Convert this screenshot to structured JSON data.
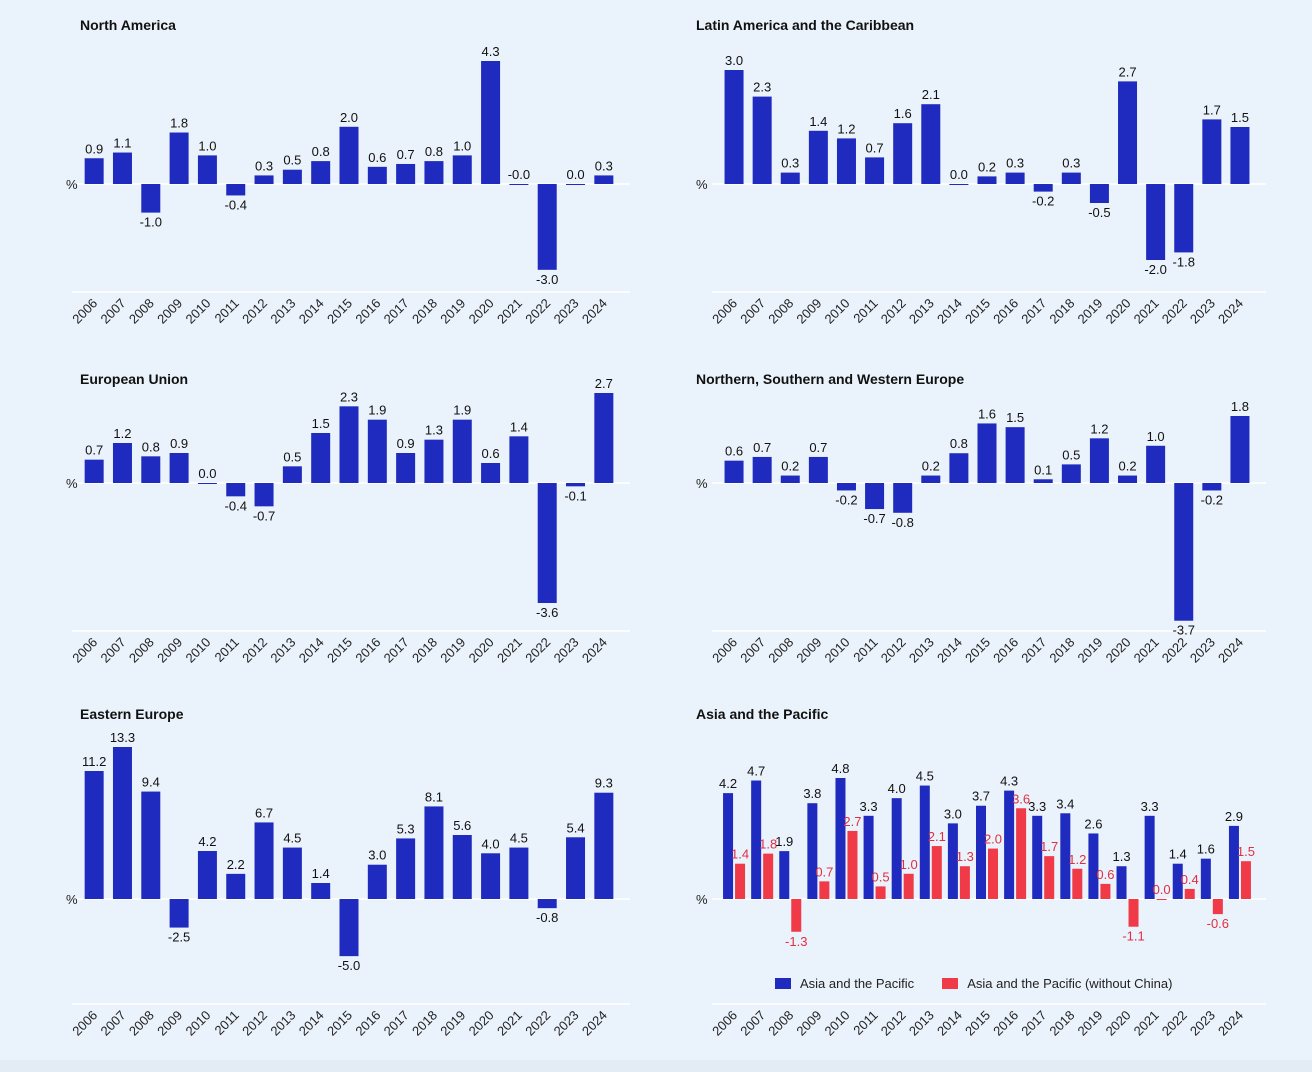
{
  "colors": {
    "bar": "#1f2bbf",
    "bar_alt": "#f13a47",
    "label_alt": "#e0303f",
    "axis": "#ffffff",
    "text": "#111111"
  },
  "unit_label": "%",
  "legend": [
    {
      "label": "Asia and the Pacific",
      "color": "#1f2bbf"
    },
    {
      "label": "Asia and the Pacific (without China)",
      "color": "#f13a47"
    }
  ],
  "chart_data": [
    {
      "type": "bar",
      "title": "North America",
      "ylabel": "%",
      "categories": [
        "2006",
        "2007",
        "2008",
        "2009",
        "2010",
        "2011",
        "2012",
        "2013",
        "2014",
        "2015",
        "2016",
        "2017",
        "2018",
        "2019",
        "2020",
        "2021",
        "2022",
        "2023",
        "2024"
      ],
      "series": [
        {
          "values": [
            0.9,
            1.1,
            -1.0,
            1.8,
            1.0,
            -0.4,
            0.3,
            0.5,
            0.8,
            2.0,
            0.6,
            0.7,
            0.8,
            1.0,
            4.3,
            -0.0,
            -3.0,
            0.0,
            0.3
          ],
          "labels": [
            "0.9",
            "1.1",
            "-1.0",
            "1.8",
            "1.0",
            "-0.4",
            "0.3",
            "0.5",
            "0.8",
            "2.0",
            "0.6",
            "0.7",
            "0.8",
            "1.0",
            "4.3",
            "-0.0",
            "-3.0",
            "0.0",
            "0.3"
          ]
        }
      ],
      "ylim": [
        -3.8,
        4.3
      ]
    },
    {
      "type": "bar",
      "title": "Latin America and the Caribbean",
      "ylabel": "%",
      "categories": [
        "2006",
        "2007",
        "2008",
        "2009",
        "2010",
        "2011",
        "2012",
        "2013",
        "2014",
        "2015",
        "2016",
        "2017",
        "2018",
        "2019",
        "2020",
        "2021",
        "2022",
        "2023",
        "2024"
      ],
      "series": [
        {
          "values": [
            3.0,
            2.3,
            0.3,
            1.4,
            1.2,
            0.7,
            1.6,
            2.1,
            0.0,
            0.2,
            0.3,
            -0.2,
            0.3,
            -0.5,
            2.7,
            -2.0,
            -1.8,
            1.7,
            1.5
          ],
          "labels": [
            "3.0",
            "2.3",
            "0.3",
            "1.4",
            "1.2",
            "0.7",
            "1.6",
            "2.1",
            "0.0",
            "0.2",
            "0.3",
            "-0.2",
            "0.3",
            "-0.5",
            "2.7",
            "-2.0",
            "-1.8",
            "1.7",
            "1.5"
          ]
        }
      ],
      "ylim": [
        -2.7,
        3.0
      ]
    },
    {
      "type": "bar",
      "title": "European Union",
      "ylabel": "%",
      "categories": [
        "2006",
        "2007",
        "2008",
        "2009",
        "2010",
        "2011",
        "2012",
        "2013",
        "2014",
        "2015",
        "2016",
        "2017",
        "2018",
        "2019",
        "2020",
        "2021",
        "2022",
        "2023",
        "2024"
      ],
      "series": [
        {
          "values": [
            0.7,
            1.2,
            0.8,
            0.9,
            0.0,
            -0.4,
            -0.7,
            0.5,
            1.5,
            2.3,
            1.9,
            0.9,
            1.3,
            1.9,
            0.6,
            1.4,
            -3.6,
            -0.1,
            2.7
          ],
          "labels": [
            "0.7",
            "1.2",
            "0.8",
            "0.9",
            "0.0",
            "-0.4",
            "-0.7",
            "0.5",
            "1.5",
            "2.3",
            "1.9",
            "0.9",
            "1.3",
            "1.9",
            "0.6",
            "1.4",
            "-3.6",
            "-0.1",
            "2.7"
          ]
        }
      ],
      "ylim": [
        -4.5,
        2.7
      ]
    },
    {
      "type": "bar",
      "title": "Northern, Southern and Western Europe",
      "ylabel": "%",
      "categories": [
        "2006",
        "2007",
        "2008",
        "2009",
        "2010",
        "2011",
        "2012",
        "2013",
        "2014",
        "2015",
        "2016",
        "2017",
        "2018",
        "2019",
        "2020",
        "2021",
        "2022",
        "2023",
        "2024"
      ],
      "series": [
        {
          "values": [
            0.6,
            0.7,
            0.2,
            0.7,
            -0.2,
            -0.7,
            -0.8,
            0.2,
            0.8,
            1.6,
            1.5,
            0.1,
            0.5,
            1.2,
            0.2,
            1.0,
            -3.7,
            -0.2,
            1.8
          ],
          "labels": [
            "0.6",
            "0.7",
            "0.2",
            "0.7",
            "-0.2",
            "-0.7",
            "-0.8",
            "0.2",
            "0.8",
            "1.6",
            "1.5",
            "0.1",
            "0.5",
            "1.2",
            "0.2",
            "1.0",
            "-3.7",
            "-0.2",
            "1.8"
          ]
        }
      ],
      "ylim": [
        -4.5,
        1.8
      ]
    },
    {
      "type": "bar",
      "title": "Eastern Europe",
      "ylabel": "%",
      "categories": [
        "2006",
        "2007",
        "2008",
        "2009",
        "2010",
        "2011",
        "2012",
        "2013",
        "2014",
        "2015",
        "2016",
        "2017",
        "2018",
        "2019",
        "2020",
        "2021",
        "2022",
        "2023",
        "2024"
      ],
      "series": [
        {
          "values": [
            11.2,
            13.3,
            9.4,
            -2.5,
            4.2,
            2.2,
            6.7,
            4.5,
            1.4,
            -5.0,
            3.0,
            5.3,
            8.1,
            5.6,
            4.0,
            4.5,
            -0.8,
            5.4,
            9.3
          ],
          "labels": [
            "11.2",
            "13.3",
            "9.4",
            "-2.5",
            "4.2",
            "2.2",
            "6.7",
            "4.5",
            "1.4",
            "-5.0",
            "3.0",
            "5.3",
            "8.1",
            "5.6",
            "4.0",
            "4.5",
            "-0.8",
            "5.4",
            "9.3"
          ]
        }
      ],
      "ylim": [
        -9.3,
        13.3
      ]
    },
    {
      "type": "bar",
      "title": "Asia and the Pacific",
      "ylabel": "%",
      "categories": [
        "2006",
        "2007",
        "2008",
        "2009",
        "2010",
        "2011",
        "2012",
        "2013",
        "2014",
        "2015",
        "2016",
        "2017",
        "2018",
        "2019",
        "2020",
        "2021",
        "2022",
        "2023",
        "2024"
      ],
      "series": [
        {
          "name": "Asia and the Pacific",
          "values": [
            4.2,
            4.7,
            1.9,
            3.8,
            4.8,
            3.3,
            4.0,
            4.5,
            3.0,
            3.7,
            4.3,
            3.3,
            3.4,
            2.6,
            1.3,
            3.3,
            1.4,
            1.6,
            2.9
          ],
          "labels": [
            "4.2",
            "4.7",
            "1.9",
            "3.8",
            "4.8",
            "3.3",
            "4.0",
            "4.5",
            "3.0",
            "3.7",
            "4.3",
            "3.3",
            "3.4",
            "2.6",
            "1.3",
            "3.3",
            "1.4",
            "1.6",
            "2.9"
          ]
        },
        {
          "name": "Asia and the Pacific (without China)",
          "values": [
            1.4,
            1.8,
            -1.3,
            0.7,
            2.7,
            0.5,
            1.0,
            2.1,
            1.3,
            2.0,
            3.6,
            1.7,
            1.2,
            0.6,
            -1.1,
            0.0,
            0.4,
            -0.6,
            1.5
          ],
          "labels": [
            "1.4",
            "1.8",
            "-1.3",
            "0.7",
            "2.7",
            "0.5",
            "1.0",
            "2.1",
            "1.3",
            "2.0",
            "3.6",
            "1.7",
            "1.2",
            "0.6",
            "-1.1",
            "0.0",
            "0.4",
            "-0.6",
            "1.5"
          ]
        }
      ],
      "ylim": [
        -3.2,
        4.8
      ],
      "legend_position": "bottom"
    }
  ]
}
